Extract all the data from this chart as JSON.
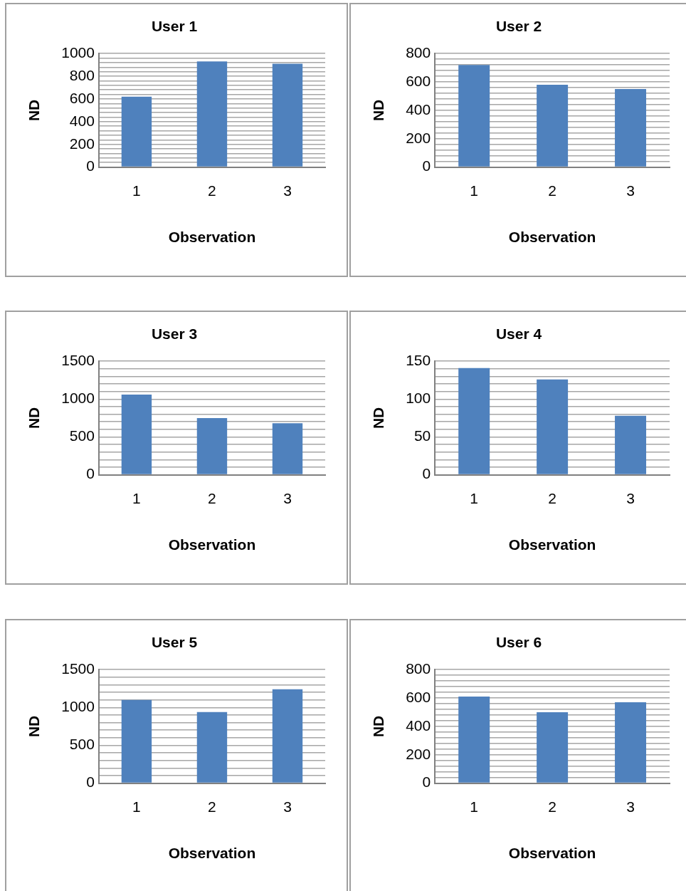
{
  "chart_data": [
    {
      "type": "bar",
      "title": "User 1",
      "xlabel": "Observation",
      "ylabel": "ND",
      "categories": [
        "1",
        "2",
        "3"
      ],
      "values": [
        620,
        930,
        910
      ],
      "color": "#4f81bd",
      "ylim": [
        0,
        1000
      ],
      "grid": "y",
      "legend": false,
      "yticks": [
        0,
        {
          "value": 40,
          "label": null
        },
        {
          "value": 80,
          "label": null
        },
        {
          "value": 120,
          "label": null
        },
        {
          "value": 160,
          "label": null
        },
        200,
        {
          "value": 240,
          "label": null
        },
        {
          "value": 280,
          "label": null
        },
        {
          "value": 320,
          "label": null
        },
        {
          "value": 360,
          "label": null
        },
        400,
        {
          "value": 440,
          "label": null
        },
        {
          "value": 480,
          "label": null
        },
        {
          "value": 520,
          "label": null
        },
        {
          "value": 560,
          "label": null
        },
        600,
        {
          "value": 640,
          "label": null
        },
        {
          "value": 680,
          "label": null
        },
        {
          "value": 720,
          "label": null
        },
        {
          "value": 760,
          "label": null
        },
        800,
        {
          "value": 840,
          "label": null
        },
        {
          "value": 880,
          "label": null
        },
        {
          "value": 920,
          "label": null
        },
        {
          "value": 960,
          "label": null
        },
        1000
      ]
    },
    {
      "type": "bar",
      "title": "User 2",
      "xlabel": "Observation",
      "ylabel": "ND",
      "categories": [
        "1",
        "2",
        "3"
      ],
      "values": [
        720,
        580,
        550
      ],
      "color": "#4f81bd",
      "ylim": [
        0,
        800
      ],
      "grid": "y",
      "legend": false,
      "yticks": [
        0,
        {
          "value": 40,
          "label": null
        },
        {
          "value": 80,
          "label": null
        },
        {
          "value": 120,
          "label": null
        },
        {
          "value": 160,
          "label": null
        },
        200,
        {
          "value": 240,
          "label": null
        },
        {
          "value": 280,
          "label": null
        },
        {
          "value": 320,
          "label": null
        },
        {
          "value": 360,
          "label": null
        },
        400,
        {
          "value": 440,
          "label": null
        },
        {
          "value": 480,
          "label": null
        },
        {
          "value": 520,
          "label": null
        },
        {
          "value": 560,
          "label": null
        },
        600,
        {
          "value": 640,
          "label": null
        },
        {
          "value": 680,
          "label": null
        },
        {
          "value": 720,
          "label": null
        },
        {
          "value": 760,
          "label": null
        },
        800
      ]
    },
    {
      "type": "bar",
      "title": "User 3",
      "xlabel": "Observation",
      "ylabel": "ND",
      "categories": [
        "1",
        "2",
        "3"
      ],
      "values": [
        1060,
        750,
        680
      ],
      "color": "#4f81bd",
      "ylim": [
        0,
        1500
      ],
      "grid": "y",
      "legend": false,
      "yticks": [
        0,
        {
          "value": 100,
          "label": null
        },
        {
          "value": 200,
          "label": null
        },
        {
          "value": 300,
          "label": null
        },
        {
          "value": 400,
          "label": null
        },
        500,
        {
          "value": 600,
          "label": null
        },
        {
          "value": 700,
          "label": null
        },
        {
          "value": 800,
          "label": null
        },
        {
          "value": 900,
          "label": null
        },
        1000,
        {
          "value": 1100,
          "label": null
        },
        {
          "value": 1200,
          "label": null
        },
        {
          "value": 1300,
          "label": null
        },
        {
          "value": 1400,
          "label": null
        },
        1500
      ]
    },
    {
      "type": "bar",
      "title": "User 4",
      "xlabel": "Observation",
      "ylabel": "ND",
      "categories": [
        "1",
        "2",
        "3"
      ],
      "values": [
        141,
        126,
        78
      ],
      "color": "#4f81bd",
      "ylim": [
        0,
        150
      ],
      "grid": "y",
      "legend": false,
      "yticks": [
        0,
        {
          "value": 10,
          "label": null
        },
        {
          "value": 20,
          "label": null
        },
        {
          "value": 30,
          "label": null
        },
        {
          "value": 40,
          "label": null
        },
        50,
        {
          "value": 60,
          "label": null
        },
        {
          "value": 70,
          "label": null
        },
        {
          "value": 80,
          "label": null
        },
        {
          "value": 90,
          "label": null
        },
        100,
        {
          "value": 110,
          "label": null
        },
        {
          "value": 120,
          "label": null
        },
        {
          "value": 130,
          "label": null
        },
        {
          "value": 140,
          "label": null
        },
        150
      ]
    },
    {
      "type": "bar",
      "title": "User 5",
      "xlabel": "Observation",
      "ylabel": "ND",
      "categories": [
        "1",
        "2",
        "3"
      ],
      "values": [
        1100,
        940,
        1240
      ],
      "color": "#4f81bd",
      "ylim": [
        0,
        1500
      ],
      "grid": "y",
      "legend": false,
      "yticks": [
        0,
        {
          "value": 100,
          "label": null
        },
        {
          "value": 200,
          "label": null
        },
        {
          "value": 300,
          "label": null
        },
        {
          "value": 400,
          "label": null
        },
        500,
        {
          "value": 600,
          "label": null
        },
        {
          "value": 700,
          "label": null
        },
        {
          "value": 800,
          "label": null
        },
        {
          "value": 900,
          "label": null
        },
        1000,
        {
          "value": 1100,
          "label": null
        },
        {
          "value": 1200,
          "label": null
        },
        {
          "value": 1300,
          "label": null
        },
        {
          "value": 1400,
          "label": null
        },
        1500
      ]
    },
    {
      "type": "bar",
      "title": "User 6",
      "xlabel": "Observation",
      "ylabel": "ND",
      "categories": [
        "1",
        "2",
        "3"
      ],
      "values": [
        610,
        500,
        570
      ],
      "color": "#4f81bd",
      "ylim": [
        0,
        800
      ],
      "grid": "y",
      "legend": false,
      "yticks": [
        0,
        {
          "value": 40,
          "label": null
        },
        {
          "value": 80,
          "label": null
        },
        {
          "value": 120,
          "label": null
        },
        {
          "value": 160,
          "label": null
        },
        200,
        {
          "value": 240,
          "label": null
        },
        {
          "value": 280,
          "label": null
        },
        {
          "value": 320,
          "label": null
        },
        {
          "value": 360,
          "label": null
        },
        400,
        {
          "value": 440,
          "label": null
        },
        {
          "value": 480,
          "label": null
        },
        {
          "value": 520,
          "label": null
        },
        {
          "value": 560,
          "label": null
        },
        600,
        {
          "value": 640,
          "label": null
        },
        {
          "value": 680,
          "label": null
        },
        {
          "value": 720,
          "label": null
        },
        {
          "value": 760,
          "label": null
        },
        800
      ]
    }
  ]
}
